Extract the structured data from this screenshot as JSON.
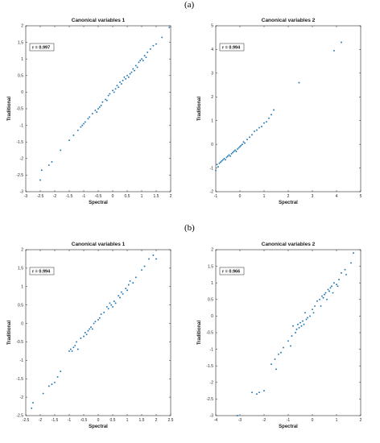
{
  "panels": [
    {
      "label": "(a)"
    },
    {
      "label": "(b)"
    }
  ],
  "chart_data": [
    {
      "type": "scatter",
      "title": "Canonical variables 1",
      "xlabel": "Spectral",
      "ylabel": "Traditional",
      "xlim": [
        -3,
        2
      ],
      "ylim": [
        -3,
        2
      ],
      "xticks": [
        -3,
        -2.5,
        -2,
        -1.5,
        -1,
        -0.5,
        0,
        0.5,
        1,
        1.5,
        2
      ],
      "yticks": [
        -3,
        -2.5,
        -2,
        -1.5,
        -1,
        -0.5,
        0,
        0.5,
        1,
        1.5,
        2
      ],
      "annotation": "r = 0.997",
      "color": "#1f77b4",
      "series": [
        {
          "x": [
            -2.5,
            -2.45,
            -2.2,
            -2.1,
            -1.8,
            -1.5,
            -1.35,
            -1.2,
            -1.1,
            -1.05,
            -1.0,
            -0.95,
            -0.85,
            -0.8,
            -0.7,
            -0.6,
            -0.55,
            -0.5,
            -0.45,
            -0.4,
            -0.35,
            -0.25,
            -0.2,
            -0.15,
            -0.1,
            0.0,
            0.05,
            0.1,
            0.15,
            0.2,
            0.25,
            0.3,
            0.35,
            0.4,
            0.45,
            0.5,
            0.55,
            0.6,
            0.65,
            0.7,
            0.75,
            0.8,
            0.85,
            0.9,
            0.95,
            1.0,
            1.05,
            1.1,
            1.15,
            1.2,
            1.3,
            1.4,
            1.5,
            1.7,
            1.95
          ],
          "y": [
            -2.65,
            -2.35,
            -2.2,
            -2.1,
            -1.75,
            -1.45,
            -1.3,
            -1.15,
            -1.05,
            -1.0,
            -0.95,
            -0.9,
            -0.8,
            -0.75,
            -0.65,
            -0.55,
            -0.6,
            -0.5,
            -0.45,
            -0.4,
            -0.3,
            -0.22,
            -0.25,
            -0.1,
            -0.05,
            0.05,
            0.0,
            0.1,
            0.2,
            0.15,
            0.3,
            0.25,
            0.35,
            0.45,
            0.4,
            0.5,
            0.45,
            0.55,
            0.6,
            0.7,
            0.65,
            0.8,
            0.75,
            0.9,
            0.95,
            1.0,
            0.95,
            1.1,
            1.05,
            1.2,
            1.3,
            1.4,
            1.45,
            1.65,
            1.95
          ]
        }
      ]
    },
    {
      "type": "scatter",
      "title": "Canonical variables 2",
      "xlabel": "Spectral",
      "ylabel": "Traditional",
      "xlim": [
        -1,
        5
      ],
      "ylim": [
        -2,
        5
      ],
      "xticks": [
        -1,
        0,
        1,
        2,
        3,
        4,
        5
      ],
      "yticks": [
        -2,
        -1,
        0,
        1,
        2,
        3,
        4,
        5
      ],
      "annotation": "r = 0.994",
      "color": "#1f77b4",
      "series": [
        {
          "x": [
            -1.0,
            -0.95,
            -0.9,
            -0.85,
            -0.8,
            -0.75,
            -0.7,
            -0.65,
            -0.6,
            -0.55,
            -0.5,
            -0.45,
            -0.4,
            -0.35,
            -0.3,
            -0.25,
            -0.2,
            -0.15,
            -0.1,
            -0.05,
            0.0,
            0.05,
            0.1,
            0.15,
            0.2,
            0.3,
            0.4,
            0.5,
            0.6,
            0.7,
            0.8,
            0.9,
            1.0,
            1.1,
            1.2,
            1.3,
            1.4,
            2.45,
            3.9,
            4.2
          ],
          "y": [
            -1.1,
            -0.85,
            -0.95,
            -0.8,
            -0.75,
            -0.7,
            -0.65,
            -0.6,
            -0.65,
            -0.55,
            -0.5,
            -0.45,
            -0.5,
            -0.4,
            -0.35,
            -0.3,
            -0.25,
            -0.3,
            -0.2,
            -0.15,
            -0.1,
            -0.05,
            0.0,
            0.1,
            0.05,
            0.2,
            0.3,
            0.4,
            0.55,
            0.6,
            0.7,
            0.75,
            0.9,
            0.95,
            1.1,
            1.25,
            1.45,
            2.6,
            3.95,
            4.3
          ]
        }
      ]
    },
    {
      "type": "scatter",
      "title": "Canonical variables 1",
      "xlabel": "Spectral",
      "ylabel": "Traditional",
      "xlim": [
        -2.5,
        2.5
      ],
      "ylim": [
        -2.5,
        2
      ],
      "xticks": [
        -2.5,
        -2,
        -1.5,
        -1,
        -0.5,
        0,
        0.5,
        1,
        1.5,
        2,
        2.5
      ],
      "yticks": [
        -2.5,
        -2,
        -1.5,
        -1,
        -0.5,
        0,
        0.5,
        1,
        1.5,
        2
      ],
      "annotation": "r = 0.994",
      "color": "#1f77b4",
      "series": [
        {
          "x": [
            -2.3,
            -2.25,
            -1.9,
            -1.7,
            -1.6,
            -1.5,
            -1.4,
            -1.3,
            -1.0,
            -0.95,
            -0.9,
            -0.85,
            -0.8,
            -0.75,
            -0.7,
            -0.6,
            -0.5,
            -0.45,
            -0.4,
            -0.35,
            -0.3,
            -0.25,
            -0.2,
            -0.15,
            -0.1,
            0.0,
            0.05,
            0.1,
            0.2,
            0.3,
            0.35,
            0.4,
            0.45,
            0.5,
            0.55,
            0.6,
            0.7,
            0.75,
            0.8,
            0.85,
            0.95,
            1.0,
            1.05,
            1.1,
            1.2,
            1.3,
            1.5,
            1.6,
            1.75,
            1.9,
            2.0
          ],
          "y": [
            -2.3,
            -2.15,
            -1.9,
            -1.7,
            -1.65,
            -1.6,
            -1.45,
            -1.3,
            -0.75,
            -0.7,
            -0.75,
            -0.65,
            -0.6,
            -0.5,
            -0.7,
            -0.4,
            -0.35,
            -0.25,
            -0.3,
            -0.2,
            -0.15,
            -0.1,
            -0.15,
            0.0,
            0.05,
            0.1,
            0.15,
            0.25,
            0.3,
            0.45,
            0.4,
            0.55,
            0.5,
            0.45,
            0.6,
            0.55,
            0.75,
            0.7,
            0.85,
            0.8,
            0.95,
            0.9,
            1.05,
            1.15,
            1.1,
            1.25,
            1.45,
            1.55,
            1.75,
            1.85,
            1.75
          ]
        }
      ]
    },
    {
      "type": "scatter",
      "title": "Canonical variables 2",
      "xlabel": "Spectral",
      "ylabel": "Traditional",
      "xlim": [
        -4,
        2
      ],
      "ylim": [
        -3,
        2
      ],
      "xticks": [
        -4,
        -3,
        -2,
        -1,
        0,
        1,
        2
      ],
      "yticks": [
        -3,
        -2.5,
        -2,
        -1.5,
        -1,
        -0.5,
        0,
        0.5,
        1,
        1.5,
        2
      ],
      "annotation": "r = 0.966",
      "color": "#1f77b4",
      "series": [
        {
          "x": [
            -3.1,
            -2.5,
            -2.3,
            -2.2,
            -2.0,
            -1.7,
            -1.55,
            -1.5,
            -1.4,
            -1.3,
            -1.2,
            -1.0,
            -0.9,
            -0.85,
            -0.8,
            -0.7,
            -0.65,
            -0.6,
            -0.55,
            -0.5,
            -0.45,
            -0.4,
            -0.35,
            -0.3,
            -0.25,
            -0.2,
            -0.1,
            0.0,
            0.05,
            0.1,
            0.2,
            0.3,
            0.35,
            0.4,
            0.45,
            0.5,
            0.55,
            0.6,
            0.65,
            0.7,
            0.75,
            0.8,
            0.85,
            0.9,
            1.0,
            1.05,
            1.1,
            1.2,
            1.35,
            1.4,
            1.6,
            1.7
          ],
          "y": [
            -3.0,
            -2.3,
            -2.35,
            -2.3,
            -2.25,
            -1.45,
            -1.3,
            -1.6,
            -1.15,
            -1.1,
            -0.95,
            -0.75,
            -0.9,
            -0.6,
            -0.3,
            -0.5,
            -0.4,
            -0.25,
            -0.35,
            -0.2,
            -0.3,
            -0.15,
            -0.25,
            0.1,
            -0.1,
            -0.05,
            0.0,
            0.2,
            0.1,
            0.3,
            0.45,
            0.5,
            0.3,
            0.6,
            0.55,
            0.65,
            0.7,
            0.5,
            0.8,
            0.75,
            0.85,
            0.9,
            0.7,
            1.0,
            0.95,
            0.9,
            1.1,
            1.3,
            1.4,
            1.25,
            1.6,
            1.9
          ]
        }
      ]
    }
  ]
}
